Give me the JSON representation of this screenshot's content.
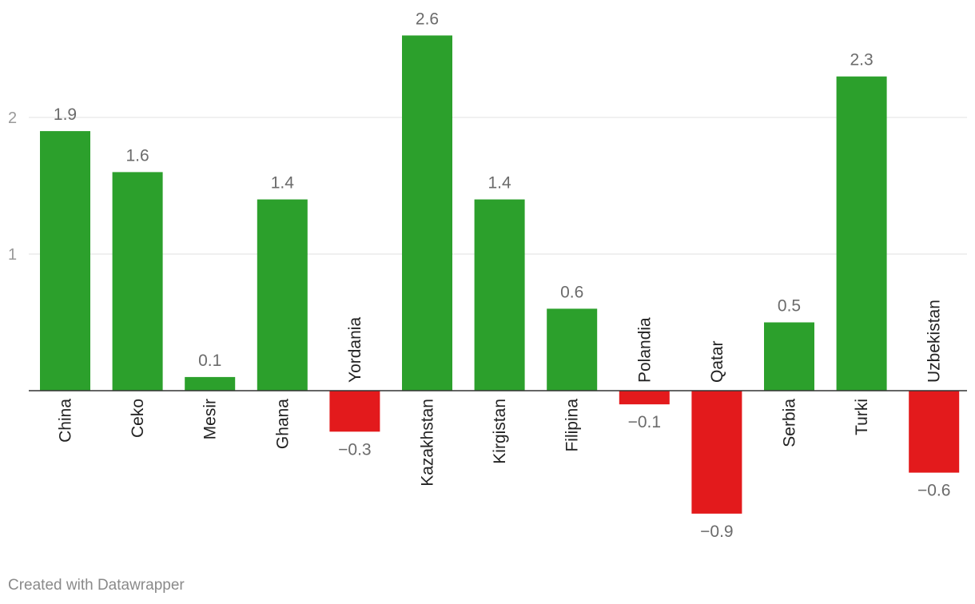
{
  "chart_data": {
    "type": "bar",
    "categories": [
      "China",
      "Ceko",
      "Mesir",
      "Ghana",
      "Yordania",
      "Kazakhstan",
      "Kirgistan",
      "Filipina",
      "Polandia",
      "Qatar",
      "Serbia",
      "Turki",
      "Uzbekistan"
    ],
    "values": [
      1.9,
      1.6,
      0.1,
      1.4,
      -0.3,
      2.6,
      1.4,
      0.6,
      -0.1,
      -0.9,
      0.5,
      2.3,
      -0.6
    ],
    "value_labels": [
      "1.9",
      "1.6",
      "0.1",
      "1.4",
      "−0.3",
      "2.6",
      "1.4",
      "0.6",
      "−0.1",
      "−0.9",
      "0.5",
      "2.3",
      "−0.6"
    ],
    "yticks": [
      1,
      2
    ],
    "ytick_labels": [
      "1",
      "2"
    ],
    "ylim": [
      -0.9,
      2.6
    ],
    "grid": true,
    "colors": {
      "positive": "#2ca02c",
      "negative": "#e31a1c"
    }
  },
  "footer": {
    "credit": "Created with Datawrapper"
  }
}
